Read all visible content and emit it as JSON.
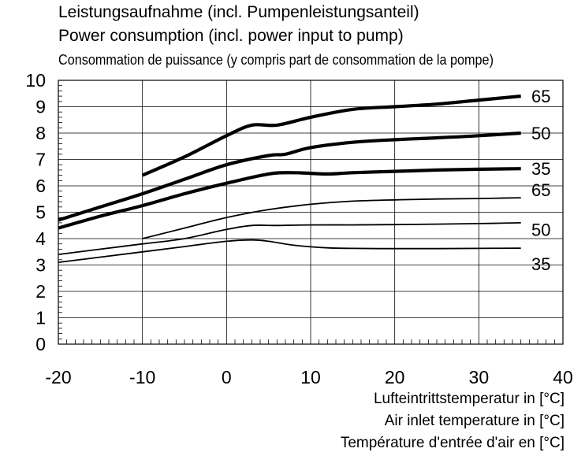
{
  "chart_data": {
    "type": "line",
    "title": "Leistungsaufnahme (incl. Pumpenleistungsanteil)",
    "subtitle_en": "Power consumption (incl. power input to pump)",
    "subtitle_fr": "Consommation de puissance (y compris part de consommation de la pompe)",
    "xlabel_de": "Lufteintrittstemperatur in [°C]",
    "xlabel_en": "Air inlet temperature in [°C]",
    "xlabel_fr": "Température d'entrée d'air en [°C]",
    "xlim": [
      -20,
      40
    ],
    "ylim": [
      0,
      10
    ],
    "xticks": [
      "-20",
      "-10",
      "0",
      "10",
      "20",
      "30",
      "40"
    ],
    "yticks": [
      "0",
      "1",
      "2",
      "3",
      "4",
      "5",
      "6",
      "7",
      "8",
      "9",
      "10"
    ],
    "grid": true,
    "series": [
      {
        "name": "65",
        "weight": "bold",
        "x": [
          -10,
          -5,
          0,
          3,
          6,
          10,
          15,
          20,
          25,
          30,
          35
        ],
        "y": [
          6.4,
          7.1,
          7.9,
          8.3,
          8.3,
          8.6,
          8.9,
          9.0,
          9.1,
          9.25,
          9.4
        ]
      },
      {
        "name": "50",
        "weight": "bold",
        "x": [
          -20,
          -15,
          -10,
          -5,
          0,
          5,
          7,
          10,
          15,
          20,
          25,
          30,
          35
        ],
        "y": [
          4.7,
          5.2,
          5.7,
          6.25,
          6.8,
          7.15,
          7.2,
          7.45,
          7.65,
          7.75,
          7.82,
          7.9,
          8.0
        ]
      },
      {
        "name": "35",
        "weight": "bold",
        "x": [
          -20,
          -15,
          -10,
          -5,
          0,
          5,
          8,
          12,
          15,
          20,
          25,
          30,
          35
        ],
        "y": [
          4.4,
          4.85,
          5.25,
          5.7,
          6.1,
          6.45,
          6.5,
          6.45,
          6.5,
          6.55,
          6.6,
          6.63,
          6.65
        ]
      },
      {
        "name": "65",
        "weight": "thin",
        "x": [
          -10,
          -5,
          0,
          5,
          10,
          15,
          20,
          25,
          30,
          35
        ],
        "y": [
          4.0,
          4.4,
          4.8,
          5.1,
          5.3,
          5.42,
          5.47,
          5.5,
          5.52,
          5.55
        ]
      },
      {
        "name": "50",
        "weight": "thin",
        "x": [
          -20,
          -15,
          -10,
          -5,
          0,
          3,
          6,
          10,
          15,
          20,
          25,
          30,
          35
        ],
        "y": [
          3.4,
          3.6,
          3.8,
          4.0,
          4.35,
          4.5,
          4.5,
          4.52,
          4.52,
          4.53,
          4.55,
          4.57,
          4.6
        ]
      },
      {
        "name": "35",
        "weight": "thin",
        "x": [
          -20,
          -15,
          -10,
          -5,
          0,
          3,
          5,
          8,
          12,
          15,
          20,
          25,
          30,
          35
        ],
        "y": [
          3.1,
          3.3,
          3.5,
          3.7,
          3.9,
          3.95,
          3.9,
          3.75,
          3.65,
          3.63,
          3.62,
          3.62,
          3.63,
          3.64
        ]
      }
    ]
  }
}
